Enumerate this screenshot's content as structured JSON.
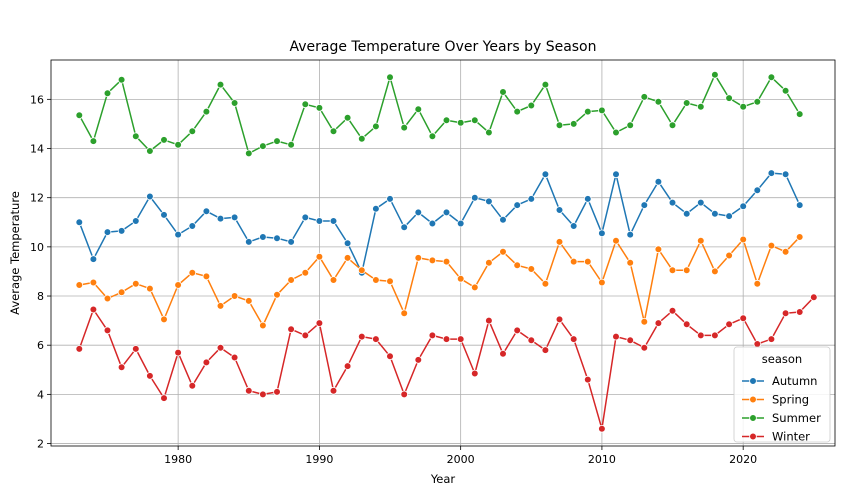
{
  "chart_data": {
    "type": "line",
    "title": "Average Temperature Over Years by Season",
    "xlabel": "Year",
    "ylabel": "Average Temperature",
    "xlim": [
      1971,
      2026.5
    ],
    "ylim": [
      1.9,
      17.6
    ],
    "xticks": [
      1980,
      1990,
      2000,
      2010,
      2020
    ],
    "yticks": [
      2,
      4,
      6,
      8,
      10,
      12,
      14,
      16
    ],
    "grid": true,
    "legend": {
      "title": "season",
      "position": "lower-right"
    },
    "x": [
      1973,
      1974,
      1975,
      1976,
      1977,
      1978,
      1979,
      1980,
      1981,
      1982,
      1983,
      1984,
      1985,
      1986,
      1987,
      1988,
      1989,
      1990,
      1991,
      1992,
      1993,
      1994,
      1995,
      1996,
      1997,
      1998,
      1999,
      2000,
      2001,
      2002,
      2003,
      2004,
      2005,
      2006,
      2007,
      2008,
      2009,
      2010,
      2011,
      2012,
      2013,
      2014,
      2015,
      2016,
      2017,
      2018,
      2019,
      2020,
      2021,
      2022,
      2023,
      2024,
      2025
    ],
    "series": [
      {
        "name": "Autumn",
        "color": "#1f77b4",
        "values": [
          11.0,
          9.5,
          10.6,
          10.65,
          11.05,
          12.05,
          11.3,
          10.5,
          10.85,
          11.45,
          11.15,
          11.2,
          10.2,
          10.4,
          10.35,
          10.2,
          11.2,
          11.05,
          11.05,
          10.15,
          8.95,
          11.55,
          11.95,
          10.8,
          11.4,
          10.95,
          11.4,
          10.95,
          12.0,
          11.85,
          11.1,
          11.7,
          11.95,
          12.95,
          11.5,
          10.85,
          11.95,
          10.55,
          12.95,
          10.5,
          11.7,
          12.65,
          11.8,
          11.35,
          11.8,
          11.35,
          11.25,
          11.65,
          12.3,
          13.0,
          12.95,
          11.7,
          null
        ]
      },
      {
        "name": "Spring",
        "color": "#ff7f0e",
        "values": [
          8.45,
          8.55,
          7.9,
          8.15,
          8.5,
          8.3,
          7.05,
          8.45,
          8.95,
          8.8,
          7.6,
          8.0,
          7.8,
          6.8,
          8.05,
          8.65,
          8.95,
          9.6,
          8.65,
          9.55,
          9.05,
          8.65,
          8.6,
          7.3,
          9.55,
          9.45,
          9.4,
          8.7,
          8.35,
          9.35,
          9.8,
          9.25,
          9.1,
          8.5,
          10.2,
          9.4,
          9.4,
          8.55,
          10.25,
          9.35,
          6.95,
          9.9,
          9.05,
          9.05,
          10.25,
          9.0,
          9.65,
          10.3,
          8.5,
          10.05,
          9.8,
          10.4,
          null
        ]
      },
      {
        "name": "Summer",
        "color": "#2ca02c",
        "values": [
          15.35,
          14.3,
          16.25,
          16.8,
          14.5,
          13.9,
          14.35,
          14.15,
          14.7,
          15.5,
          16.6,
          15.85,
          13.8,
          14.1,
          14.3,
          14.15,
          15.8,
          15.65,
          14.7,
          15.25,
          14.4,
          14.9,
          16.9,
          14.85,
          15.6,
          14.5,
          15.15,
          15.05,
          15.15,
          14.65,
          16.3,
          15.5,
          15.75,
          16.6,
          14.95,
          15.0,
          15.5,
          15.55,
          14.65,
          14.95,
          16.1,
          15.9,
          14.95,
          15.85,
          15.7,
          17.0,
          16.05,
          15.7,
          15.9,
          16.9,
          16.35,
          15.4,
          null
        ]
      },
      {
        "name": "Winter",
        "color": "#d62728",
        "values": [
          5.85,
          7.45,
          6.6,
          5.1,
          5.85,
          4.75,
          3.85,
          5.7,
          4.35,
          5.3,
          5.9,
          5.5,
          4.15,
          4.0,
          4.1,
          6.65,
          6.4,
          6.9,
          4.15,
          5.15,
          6.35,
          6.25,
          5.55,
          4.0,
          5.4,
          6.4,
          6.25,
          6.25,
          4.85,
          7.0,
          5.65,
          6.6,
          6.2,
          5.8,
          7.05,
          6.25,
          4.6,
          2.6,
          6.35,
          6.2,
          5.9,
          6.9,
          7.4,
          6.85,
          6.4,
          6.4,
          6.85,
          7.1,
          6.05,
          6.25,
          7.3,
          7.35,
          7.95
        ]
      }
    ]
  }
}
